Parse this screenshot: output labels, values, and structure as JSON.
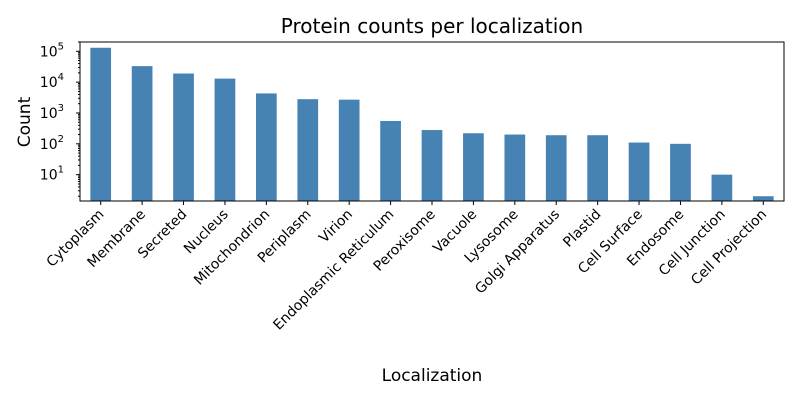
{
  "chart_data": {
    "type": "bar",
    "title": "Protein counts per localization",
    "xlabel": "Localization",
    "ylabel": "Count",
    "yscale": "log",
    "ylim": [
      1.4,
      200000
    ],
    "ytick_values": [
      10,
      100,
      1000,
      10000,
      100000
    ],
    "ytick_exponents": [
      "1",
      "2",
      "3",
      "4",
      "5"
    ],
    "ytick_base": "10",
    "grid": false,
    "legend": "none",
    "bar_color": "#4682b4",
    "categories": [
      "Cytoplasm",
      "Membrane",
      "Secreted",
      "Nucleus",
      "Mitochondrion",
      "Periplasm",
      "Virion",
      "Endoplasmic Reticulum",
      "Peroxisome",
      "Vacuole",
      "Lysosome",
      "Golgi Apparatus",
      "Plastid",
      "Cell Surface",
      "Endosome",
      "Cell Junction",
      "Cell Projection"
    ],
    "values": [
      130000,
      33000,
      19000,
      13000,
      4300,
      2800,
      2700,
      550,
      280,
      220,
      200,
      190,
      190,
      110,
      100,
      10,
      2
    ]
  }
}
